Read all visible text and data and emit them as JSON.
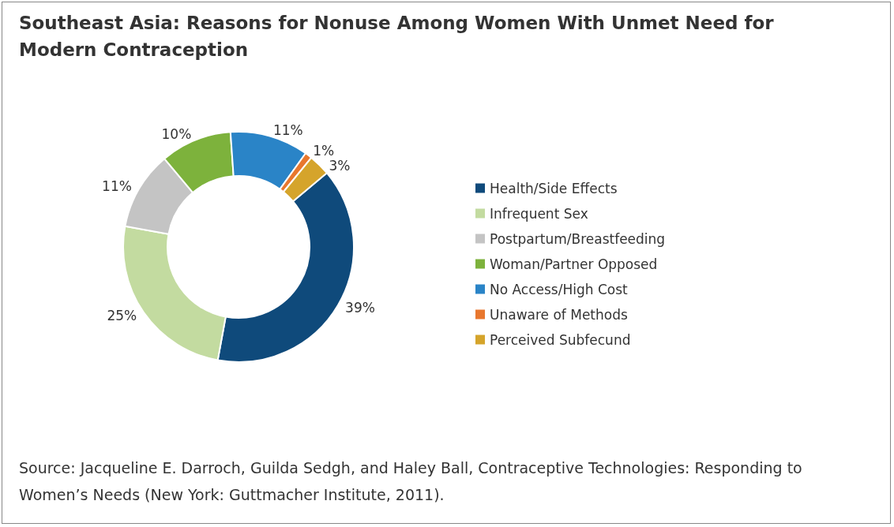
{
  "chart_data": {
    "type": "donut",
    "title": "Southeast Asia: Reasons for Nonuse Among Women With Unmet Need for Modern Contraception",
    "categories": [
      "Health/Side Effects",
      "Infrequent Sex",
      "Postpartum/Breastfeeding",
      "Woman/Partner Opposed",
      "No Access/High Cost",
      "Unaware of Methods",
      "Perceived Subfecund"
    ],
    "values": [
      39,
      25,
      11,
      10,
      11,
      1,
      3
    ],
    "colors": [
      "#0f4a7b",
      "#c3dba0",
      "#c4c4c4",
      "#7db23c",
      "#2a84c7",
      "#e8772e",
      "#d5a42b"
    ],
    "value_labels": [
      "39%",
      "25%",
      "11%",
      "10%",
      "11%",
      "1%",
      "3%"
    ],
    "legend": "right",
    "annotations": [
      "Source: Jacqueline E. Darroch, Guilda Sedgh, and Haley Ball, Contraceptive Technologies: Responding to Women’s Needs (New York: Guttmacher Institute, 2011)."
    ]
  }
}
